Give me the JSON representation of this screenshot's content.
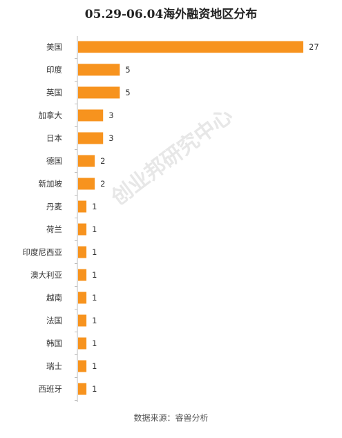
{
  "title": "05.29-06.04海外融资地区分布",
  "source": "数据来源：睿兽分析",
  "watermark": "创业邦研究中心",
  "colors": {
    "bar": "#f7931e",
    "axis": "#bbbbbb",
    "text": "#333333"
  },
  "chart_data": {
    "type": "bar",
    "orientation": "horizontal",
    "title": "05.29-06.04海外融资地区分布",
    "xlabel": "",
    "ylabel": "",
    "grid": false,
    "legend": "none",
    "categories": [
      "美国",
      "印度",
      "英国",
      "加拿大",
      "日本",
      "德国",
      "新加坡",
      "丹麦",
      "荷兰",
      "印度尼西亚",
      "澳大利亚",
      "越南",
      "法国",
      "韩国",
      "瑞士",
      "西班牙"
    ],
    "values": [
      27,
      5,
      5,
      3,
      3,
      2,
      2,
      1,
      1,
      1,
      1,
      1,
      1,
      1,
      1,
      1
    ],
    "xlim": [
      0,
      27
    ]
  }
}
